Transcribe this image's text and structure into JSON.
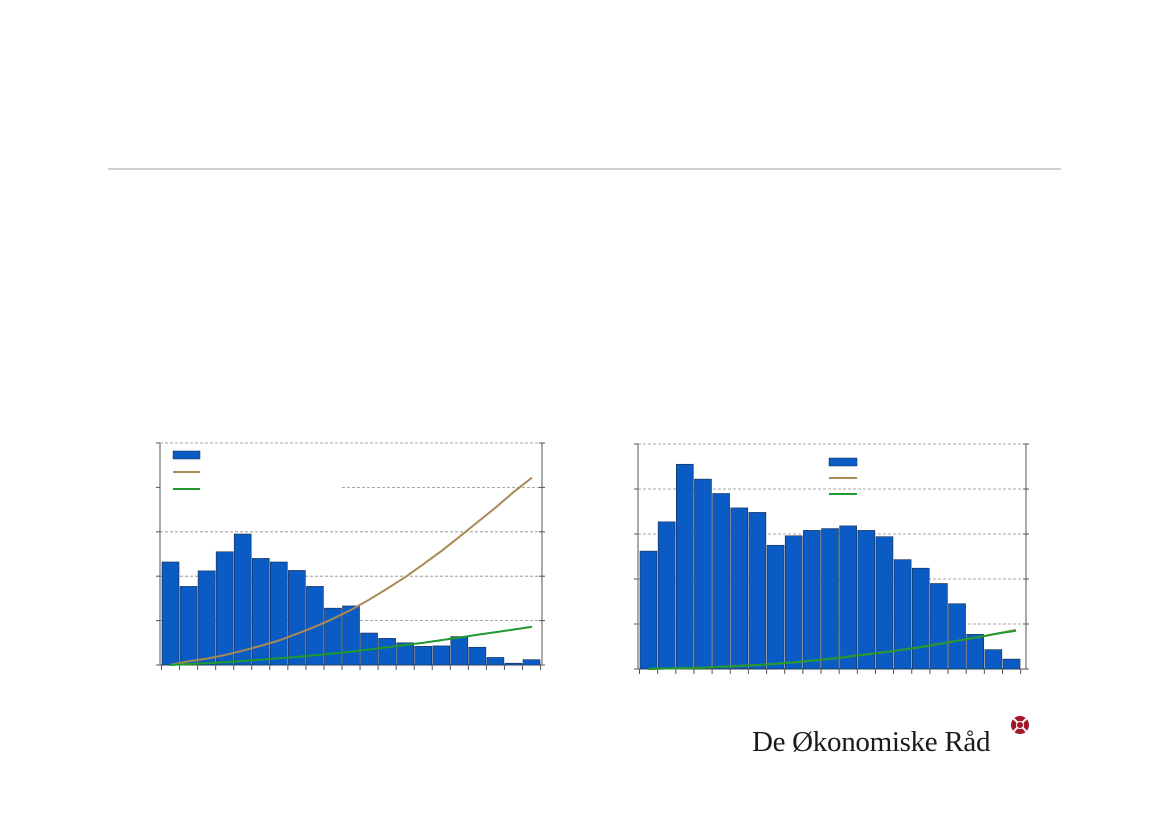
{
  "brand": {
    "name": "De Økonomiske Råd",
    "color": "#a3162b"
  },
  "colors": {
    "bar": "#0a5cc4",
    "bar_edge": "#1b2b4a",
    "line_brown": "#a98a55",
    "line_green": "#1f9b2e",
    "grid": "#8a8a8a"
  },
  "chart_data": [
    {
      "type": "bar",
      "ylim": [
        0,
        5
      ],
      "grid": true,
      "legend_position": "top-left",
      "values": [
        2.32,
        1.77,
        2.12,
        2.55,
        2.95,
        2.4,
        2.32,
        2.13,
        1.77,
        1.28,
        1.33,
        0.72,
        0.6,
        0.5,
        0.42,
        0.43,
        0.64,
        0.4,
        0.17,
        0.04,
        0.12
      ],
      "series": [
        {
          "kind": "bar",
          "values": [
            2.32,
            1.77,
            2.12,
            2.55,
            2.95,
            2.4,
            2.32,
            2.13,
            1.77,
            1.28,
            1.33,
            0.72,
            0.6,
            0.5,
            0.42,
            0.43,
            0.64,
            0.4,
            0.17,
            0.04,
            0.12
          ]
        },
        {
          "kind": "line",
          "color": "#a98a55",
          "values": [
            0.0,
            0.08,
            0.14,
            0.22,
            0.32,
            0.43,
            0.55,
            0.7,
            0.86,
            1.04,
            1.24,
            1.47,
            1.72,
            1.98,
            2.27,
            2.57,
            2.89,
            3.22,
            3.55,
            3.9,
            4.22
          ]
        },
        {
          "kind": "line",
          "color": "#1f9b2e",
          "values": [
            0.0,
            0.02,
            0.04,
            0.06,
            0.09,
            0.12,
            0.15,
            0.18,
            0.22,
            0.26,
            0.3,
            0.35,
            0.4,
            0.45,
            0.5,
            0.56,
            0.62,
            0.68,
            0.74,
            0.8,
            0.86
          ]
        }
      ]
    },
    {
      "type": "bar",
      "ylim": [
        0,
        5
      ],
      "grid": true,
      "legend_position": "top-center",
      "values": [
        2.62,
        3.27,
        4.55,
        4.22,
        3.9,
        3.58,
        3.48,
        2.75,
        2.96,
        3.08,
        3.12,
        3.18,
        3.08,
        2.94,
        2.43,
        2.24,
        1.9,
        1.45,
        0.77,
        0.43,
        0.22
      ],
      "series": [
        {
          "kind": "bar",
          "values": [
            2.62,
            3.27,
            4.55,
            4.22,
            3.9,
            3.58,
            3.48,
            2.75,
            2.96,
            3.08,
            3.12,
            3.18,
            3.08,
            2.94,
            2.43,
            2.24,
            1.9,
            1.45,
            0.77,
            0.43,
            0.22
          ]
        },
        {
          "kind": "line",
          "color": "#a98a55",
          "values": [
            0.0,
            0.01,
            0.02,
            0.03,
            0.05,
            0.07,
            0.09,
            0.12,
            0.15,
            0.19,
            0.23,
            0.28,
            0.33,
            0.38,
            0.44,
            0.5,
            0.57,
            0.64,
            0.71,
            0.79,
            0.87
          ]
        },
        {
          "kind": "line",
          "color": "#1f9b2e",
          "values": [
            0.0,
            0.01,
            0.02,
            0.03,
            0.05,
            0.07,
            0.09,
            0.12,
            0.15,
            0.19,
            0.23,
            0.28,
            0.33,
            0.38,
            0.44,
            0.5,
            0.57,
            0.64,
            0.71,
            0.79,
            0.85
          ]
        }
      ]
    }
  ]
}
